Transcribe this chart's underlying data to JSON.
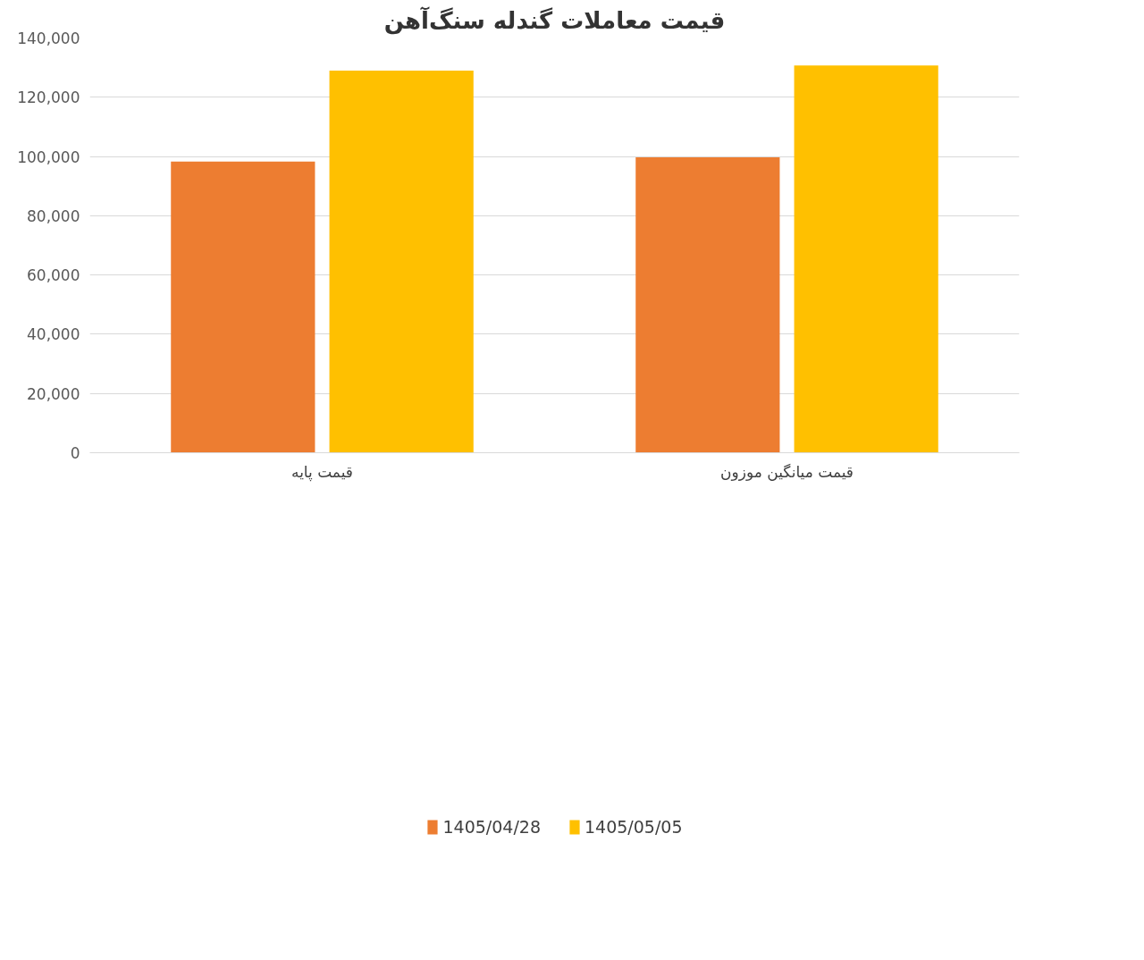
{
  "chart_data": {
    "type": "bar",
    "title": "قیمت معاملات گندله سنگ‌آهن",
    "categories": [
      "قیمت پایه",
      "قیمت میانگین موزون"
    ],
    "series": [
      {
        "name": "1405/04/28",
        "color": "#ed7d31",
        "values": [
          98300,
          99700
        ]
      },
      {
        "name": "1405/05/05",
        "color": "#ffc000",
        "values": [
          129000,
          130700
        ]
      }
    ],
    "ylim": [
      0,
      140000
    ],
    "yticks": [
      {
        "value": 0,
        "label": "0"
      },
      {
        "value": 20000,
        "label": "20,000"
      },
      {
        "value": 40000,
        "label": "40,000"
      },
      {
        "value": 60000,
        "label": "60,000"
      },
      {
        "value": 80000,
        "label": "80,000"
      },
      {
        "value": 100000,
        "label": "100,000"
      },
      {
        "value": 120000,
        "label": "120,000"
      },
      {
        "value": 140000,
        "label": "140,000"
      }
    ],
    "grid": "y",
    "legend": "bottom"
  }
}
